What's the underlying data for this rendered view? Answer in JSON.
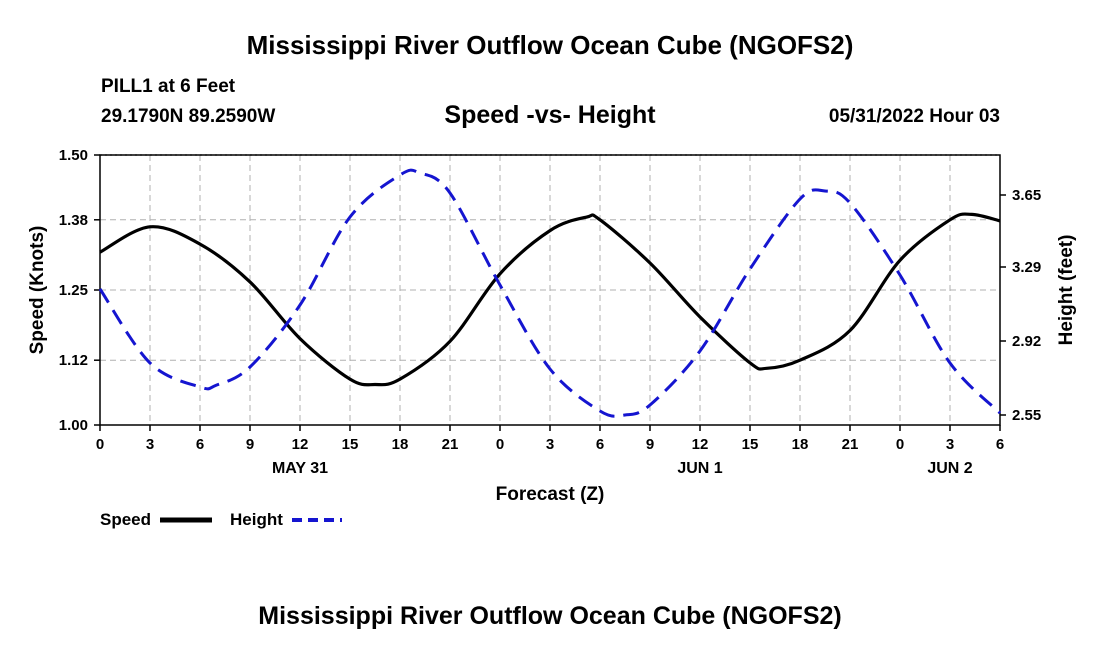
{
  "header": {
    "title": "Mississippi River Outflow Ocean Cube (NGOFS2)",
    "station": "PILL1 at 6 Feet",
    "coords": "29.1790N  89.2590W",
    "subtitle": "Speed -vs- Height",
    "datetime": "05/31/2022 Hour 03"
  },
  "footer": {
    "title": "Mississippi River Outflow Ocean Cube (NGOFS2)"
  },
  "legend": {
    "speed_label": "Speed",
    "height_label": "Height"
  },
  "colors": {
    "speed": "#000000",
    "height": "#1515d0",
    "grid": "#b0b0b0"
  },
  "chart_data": {
    "type": "line",
    "title": "Speed -vs- Height",
    "xlabel": "Forecast (Z)",
    "ylabel": "Speed (Knots)",
    "y2label": "Height (feet)",
    "xlim": [
      0,
      54
    ],
    "ylim": [
      1.0,
      1.5
    ],
    "y2lim": [
      2.5,
      3.85
    ],
    "x_ticks": [
      0,
      3,
      6,
      9,
      12,
      15,
      18,
      21,
      24,
      27,
      30,
      33,
      36,
      39,
      42,
      45,
      48,
      51,
      54
    ],
    "x_tick_labels": [
      "0",
      "3",
      "6",
      "9",
      "12",
      "15",
      "18",
      "21",
      "0",
      "3",
      "6",
      "9",
      "12",
      "15",
      "18",
      "21",
      "0",
      "3",
      "6"
    ],
    "y_ticks": [
      1.0,
      1.12,
      1.25,
      1.38,
      1.5
    ],
    "y_tick_labels": [
      "1.00",
      "1.12",
      "1.25",
      "1.38",
      "1.50"
    ],
    "y2_ticks": [
      2.55,
      2.92,
      3.29,
      3.65
    ],
    "y2_tick_labels": [
      "2.55",
      "2.92",
      "3.29",
      "3.65"
    ],
    "date_labels": [
      {
        "x": 12,
        "label": "MAY 31"
      },
      {
        "x": 36,
        "label": "JUN 1"
      },
      {
        "x": 51,
        "label": "JUN 2"
      }
    ],
    "series": [
      {
        "name": "Speed",
        "axis": "left",
        "style": "solid",
        "x": [
          0,
          3,
          6,
          9,
          12,
          15,
          16.5,
          18,
          21,
          24,
          27,
          29.2,
          30,
          33,
          36,
          39,
          40,
          42,
          45,
          48,
          51,
          52.3,
          54
        ],
        "values": [
          1.32,
          1.367,
          1.335,
          1.265,
          1.16,
          1.085,
          1.075,
          1.085,
          1.155,
          1.28,
          1.36,
          1.385,
          1.38,
          1.3,
          1.2,
          1.115,
          1.105,
          1.12,
          1.175,
          1.305,
          1.38,
          1.39,
          1.378
        ]
      },
      {
        "name": "Height",
        "axis": "right",
        "style": "dashed",
        "x": [
          0,
          3,
          6,
          7,
          9,
          12,
          15,
          18,
          19.2,
          21,
          24,
          27,
          30,
          31.5,
          33,
          36,
          39,
          42,
          43.5,
          45,
          48,
          51,
          54
        ],
        "values": [
          3.18,
          2.81,
          2.69,
          2.7,
          2.79,
          3.1,
          3.54,
          3.75,
          3.76,
          3.66,
          3.2,
          2.78,
          2.57,
          2.55,
          2.6,
          2.87,
          3.28,
          3.63,
          3.67,
          3.61,
          3.25,
          2.81,
          2.56
        ]
      }
    ]
  }
}
